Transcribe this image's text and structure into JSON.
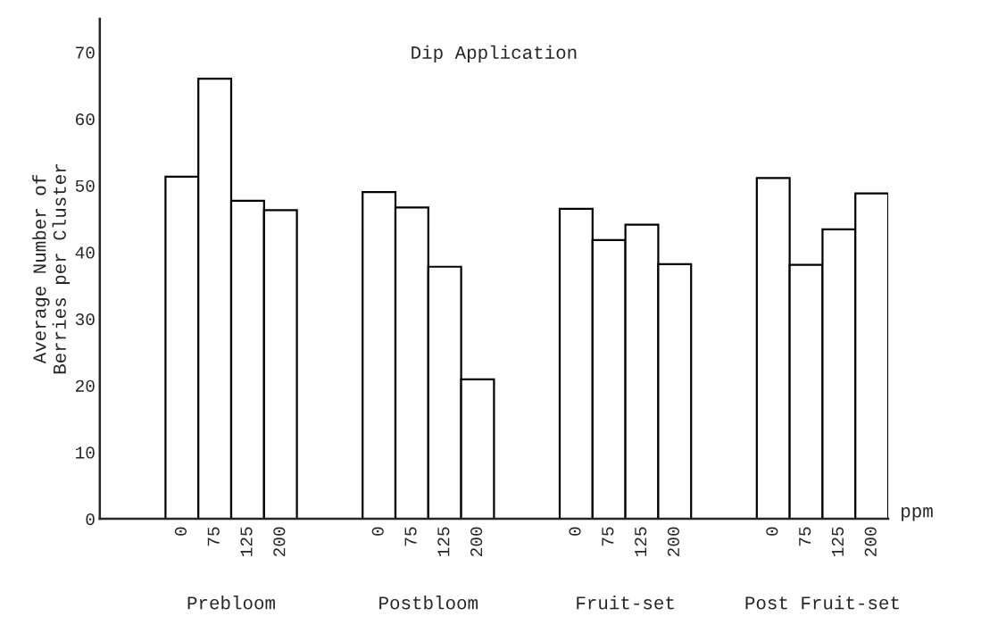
{
  "chart_data": {
    "type": "bar",
    "title": "Dip Application",
    "xlabel": "ppm",
    "ylabel": "Average Number of\nBerries per Cluster",
    "categories": [
      null,
      null,
      "0",
      "75",
      "125",
      "200",
      null,
      null,
      "0",
      "75",
      "125",
      "200",
      null,
      null,
      "0",
      "75",
      "125",
      "200",
      null,
      null,
      "0",
      "75",
      "125",
      "200"
    ],
    "values": [
      null,
      null,
      51.3,
      66,
      47.7,
      46.3,
      null,
      null,
      49.0,
      46.7,
      37.8,
      20.9,
      null,
      null,
      46.5,
      41.8,
      44.1,
      38.2,
      null,
      null,
      51.1,
      38.1,
      43.4,
      48.8
    ],
    "color": "#ffffff",
    "annotations": [
      "Prebloom",
      "Postbloom",
      "Fruit-set",
      "Post Fruit-set"
    ],
    "ylim": [
      0,
      75
    ],
    "yticks": [
      0,
      10,
      20,
      30,
      40,
      50,
      60,
      70
    ],
    "grid": false,
    "legend": false
  }
}
